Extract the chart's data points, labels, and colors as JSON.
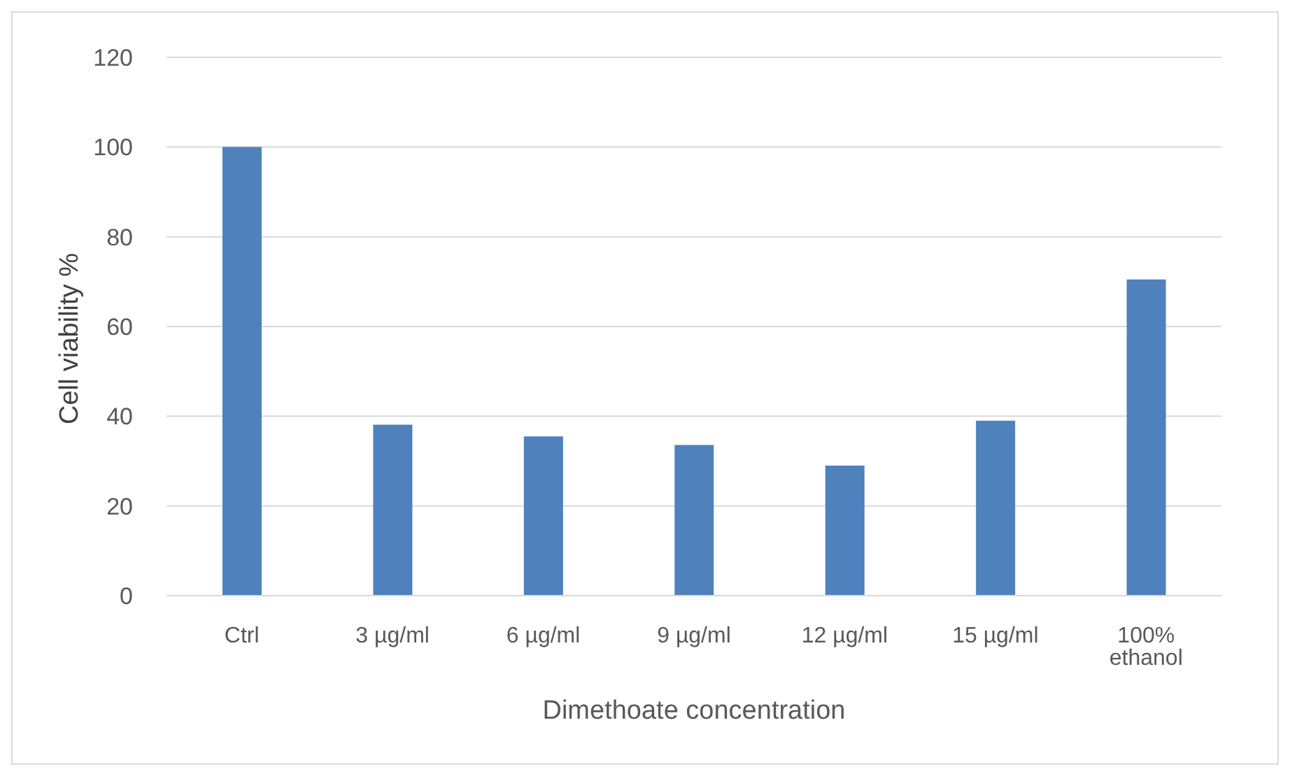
{
  "chart_data": {
    "type": "bar",
    "xlabel": "Dimethoate concentration",
    "ylabel": "Cell viability %",
    "categories": [
      "Ctrl",
      "3 µg/ml",
      "6 µg/ml",
      "9 µg/ml",
      "12 µg/ml",
      "15 µg/ml",
      "100% ethanol"
    ],
    "values": [
      100,
      38.1,
      35.5,
      33.6,
      29,
      39,
      70.5
    ],
    "color": "#4f81bd",
    "ylim": [
      0,
      120
    ],
    "yticks": [
      0,
      20,
      40,
      60,
      80,
      100,
      120
    ],
    "grid": "y",
    "legend": false
  }
}
